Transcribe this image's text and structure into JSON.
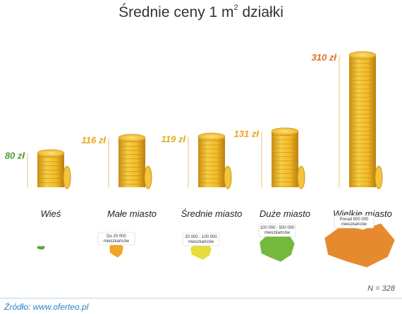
{
  "chart_data": {
    "type": "bar",
    "title": "Średnie ceny 1 m",
    "title_superscript": "2",
    "title_suffix": " działki",
    "categories": [
      "Wieś",
      "Małe miasto",
      "Średnie miasto",
      "Duże miasto",
      "Wielkie miasto"
    ],
    "values": [
      80,
      116,
      119,
      131,
      310
    ],
    "value_labels": [
      "80 zł",
      "116 zł",
      "119 zł",
      "131 zł",
      "310 zł"
    ],
    "population_labels": [
      [
        "",
        ""
      ],
      [
        "Do 20 000",
        "mieszkańców"
      ],
      [
        "20 000 - 100 000",
        "mieszkańców"
      ],
      [
        "100 000 - 500 000",
        "mieszkańców"
      ],
      [
        "Ponad 500 000",
        "mieszkańców"
      ]
    ],
    "value_label_colors": [
      "#4d9e2c",
      "#e8a61a",
      "#d9b51e",
      "#e8a61a",
      "#d8762a"
    ],
    "map_colors": [
      "#5aa73a",
      "#f1a427",
      "#e6dc3b",
      "#74b83c",
      "#e58a2f"
    ],
    "coin_color": "#f2c02b",
    "ylim": [
      0,
      330
    ],
    "grid": false
  },
  "note": "N = 328",
  "source": "Źródło: www.oferteo.pl"
}
